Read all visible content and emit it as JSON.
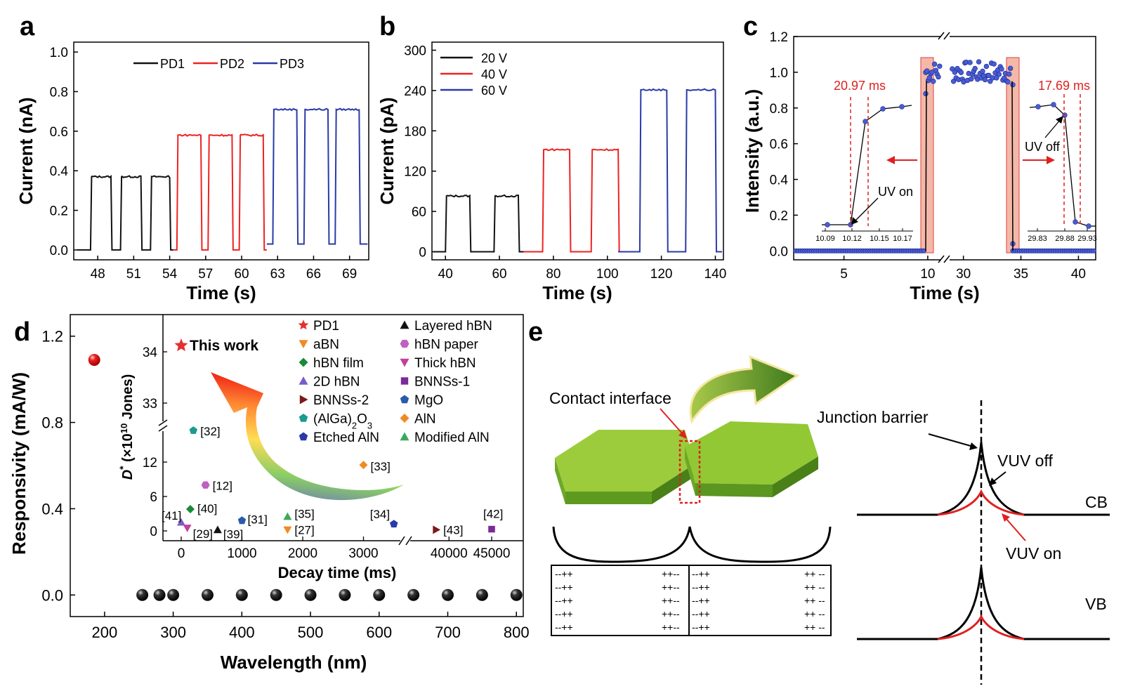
{
  "colors": {
    "black": "#111111",
    "red": "#ee2222",
    "blue": "#2a3aa8",
    "dot_blue": "#4a5bd6",
    "highlight": "#f4b8a8"
  },
  "panel_labels": [
    "a",
    "b",
    "c",
    "d",
    "e"
  ],
  "chart_data": [
    {
      "id": "a",
      "type": "line",
      "xlabel": "Time (s)",
      "ylabel": "Current (nA)",
      "xlim": [
        46,
        70.6
      ],
      "ylim": [
        -0.05,
        1.05
      ],
      "xticks": [
        48,
        51,
        54,
        57,
        60,
        63,
        66,
        69
      ],
      "yticks": [
        0.0,
        0.2,
        0.4,
        0.6,
        0.8,
        1.0
      ],
      "ytick_labels": [
        "0.0",
        "0.2",
        "0.4",
        "0.6",
        "0.8",
        "1.0"
      ],
      "legend_position": "top",
      "series": [
        {
          "name": "PD1",
          "color": "#111111",
          "x_start": 46.3,
          "x_end": 54.3,
          "low": 0.0,
          "high": 0.37,
          "pulses": [
            [
              47.4,
              49.1
            ],
            [
              49.9,
              51.6
            ],
            [
              52.4,
              54.0
            ]
          ]
        },
        {
          "name": "PD2",
          "color": "#ee2222",
          "x_start": 54.3,
          "x_end": 62.1,
          "low": 0.0,
          "high": 0.58,
          "pulses": [
            [
              54.6,
              56.6
            ],
            [
              57.2,
              59.2
            ],
            [
              59.8,
              61.8
            ]
          ]
        },
        {
          "name": "PD3",
          "color": "#2a3aa8",
          "x_start": 62.1,
          "x_end": 70.5,
          "low": 0.03,
          "high": 0.71,
          "pulses": [
            [
              62.6,
              64.6
            ],
            [
              65.2,
              67.2
            ],
            [
              67.8,
              69.8
            ]
          ]
        }
      ]
    },
    {
      "id": "b",
      "type": "line",
      "xlabel": "Time (s)",
      "ylabel": "Current (pA)",
      "xlim": [
        35,
        143
      ],
      "ylim": [
        -12,
        312
      ],
      "xticks": [
        40,
        60,
        80,
        100,
        120,
        140
      ],
      "yticks": [
        0,
        60,
        120,
        180,
        240,
        300
      ],
      "ytick_labels": [
        "0",
        "60",
        "120",
        "180",
        "240",
        "300"
      ],
      "legend_position": "top-left",
      "series": [
        {
          "name": "20 V",
          "color": "#111111",
          "x_start": 35.5,
          "x_end": 69,
          "low": 0,
          "high": 83,
          "pulses": [
            [
              40,
              49
            ],
            [
              58,
              67
            ]
          ]
        },
        {
          "name": "40 V",
          "color": "#ee2222",
          "x_start": 69,
          "x_end": 104,
          "low": 0,
          "high": 152,
          "pulses": [
            [
              76,
              86
            ],
            [
              94,
              104
            ]
          ]
        },
        {
          "name": "60 V",
          "color": "#2a3aa8",
          "x_start": 104,
          "x_end": 142.5,
          "low": 0,
          "high": 241,
          "pulses": [
            [
              112,
              122
            ],
            [
              129,
              140
            ]
          ]
        }
      ]
    },
    {
      "id": "c",
      "type": "scatter",
      "xlabel": "Time (s)",
      "ylabel": "Intensity (a.u.)",
      "ylim": [
        -0.05,
        1.2
      ],
      "yticks": [
        0.0,
        0.2,
        0.4,
        0.6,
        0.8,
        1.0,
        1.2
      ],
      "ytick_labels": [
        "0.0",
        "0.2",
        "0.4",
        "0.6",
        "0.8",
        "1.0",
        "1.2"
      ],
      "x_broken": true,
      "xticks": [
        5,
        10,
        30,
        35,
        40
      ],
      "on_level": 1.0,
      "off_level": 0.0,
      "inset_left": {
        "xticks": [
          "10.09",
          "10.12",
          "10.15",
          "10.17"
        ],
        "annotation": "20.97 ms",
        "label": "UV on"
      },
      "inset_right": {
        "xticks": [
          "29.83",
          "29.88",
          "29.93"
        ],
        "annotation": "17.69 ms",
        "label": "UV off"
      }
    },
    {
      "id": "d",
      "type": "scatter",
      "xlabel": "Wavelength (nm)",
      "ylabel": "Responsivity (mA/W)",
      "xlim": [
        150,
        810
      ],
      "ylim": [
        -0.1,
        1.3
      ],
      "xticks": [
        200,
        300,
        400,
        500,
        600,
        700,
        800
      ],
      "yticks": [
        0.0,
        0.4,
        0.8,
        1.2
      ],
      "ytick_labels": [
        "0.0",
        "0.4",
        "0.8",
        "1.2"
      ],
      "points": [
        {
          "x": 185,
          "y": 1.09,
          "color": "red"
        },
        {
          "x": 255,
          "y": 0.0
        },
        {
          "x": 280,
          "y": 0.0
        },
        {
          "x": 300,
          "y": 0.0
        },
        {
          "x": 350,
          "y": 0.0
        },
        {
          "x": 400,
          "y": 0.0
        },
        {
          "x": 450,
          "y": 0.0
        },
        {
          "x": 500,
          "y": 0.0
        },
        {
          "x": 550,
          "y": 0.0
        },
        {
          "x": 600,
          "y": 0.0
        },
        {
          "x": 650,
          "y": 0.0
        },
        {
          "x": 700,
          "y": 0.0
        },
        {
          "x": 750,
          "y": 0.0
        },
        {
          "x": 800,
          "y": 0.0
        }
      ],
      "inset": {
        "xlabel": "Decay time (ms)",
        "ylabel_main": "D",
        "ylabel_sup": "*",
        "ylabel_rest": " (×10",
        "ylabel_sup2": "10",
        "ylabel_end": " Jones)",
        "xticks": [
          "0",
          "1000",
          "2000",
          "3000",
          "40000",
          "45000"
        ],
        "yticks_low": [
          "0",
          "6",
          "12"
        ],
        "yticks_high": [
          "33",
          "34"
        ],
        "this_work": "This work",
        "legend": [
          {
            "label": "PD1",
            "shape": "star",
            "color": "#e63030"
          },
          {
            "label": "aBN",
            "shape": "tri-down",
            "color": "#f08a24"
          },
          {
            "label": "hBN film",
            "shape": "diamond",
            "color": "#1a8a3a"
          },
          {
            "label": "2D hBN",
            "shape": "tri-up",
            "color": "#7a5cc8"
          },
          {
            "label": "BNNSs-2",
            "shape": "tri-right",
            "color": "#7a1a1a"
          },
          {
            "label": "(AlGa)",
            "sub": "2",
            "label2": "O",
            "sub2": "3",
            "shape": "pentagon",
            "color": "#1a9a90"
          },
          {
            "label": "Etched AlN",
            "shape": "pentagon",
            "color": "#2a3aa8"
          },
          {
            "label": "Layered hBN",
            "shape": "tri-up",
            "color": "#111111"
          },
          {
            "label": "hBN paper",
            "shape": "hexagon",
            "color": "#c060c0"
          },
          {
            "label": "Thick hBN",
            "shape": "tri-down",
            "color": "#c040a0"
          },
          {
            "label": "BNNSs-1",
            "shape": "square",
            "color": "#7a2a9a"
          },
          {
            "label": "MgO",
            "shape": "pentagon",
            "color": "#2a5aaa"
          },
          {
            "label": "AlN",
            "shape": "diamond",
            "color": "#f08a24"
          },
          {
            "label": "Modified AlN",
            "shape": "tri-up",
            "color": "#3aaa5a"
          }
        ],
        "points": [
          {
            "ref": "[32]",
            "t": 200,
            "d": 17.5,
            "shape": "pentagon",
            "color": "#1a9a90"
          },
          {
            "ref": "[12]",
            "t": 400,
            "d": 8,
            "shape": "hexagon",
            "color": "#c060c0"
          },
          {
            "ref": "[40]",
            "t": 150,
            "d": 3.8,
            "shape": "diamond",
            "color": "#1a8a3a"
          },
          {
            "ref": "[41]",
            "t": 0,
            "d": 1.5,
            "shape": "tri-up",
            "color": "#7a5cc8"
          },
          {
            "ref": "[29]",
            "t": 100,
            "d": 0.5,
            "shape": "tri-down",
            "color": "#c040a0"
          },
          {
            "ref": "[39]",
            "t": 600,
            "d": 0.2,
            "shape": "tri-up",
            "color": "#111111"
          },
          {
            "ref": "[31]",
            "t": 1000,
            "d": 1.8,
            "shape": "pentagon",
            "color": "#2a5aaa"
          },
          {
            "ref": "[35]",
            "t": 1750,
            "d": 2.5,
            "shape": "tri-up",
            "color": "#3aaa5a"
          },
          {
            "ref": "[27]",
            "t": 1750,
            "d": 0.2,
            "shape": "tri-down",
            "color": "#f08a24"
          },
          {
            "ref": "[33]",
            "t": 3000,
            "d": 11.5,
            "shape": "diamond",
            "color": "#f08a24"
          },
          {
            "ref": "[34]",
            "t": 3500,
            "d": 1.2,
            "shape": "pentagon",
            "color": "#2a3aa8"
          },
          {
            "ref": "[43]",
            "t": 38500,
            "d": 0.2,
            "shape": "tri-right",
            "color": "#7a1a1a"
          },
          {
            "ref": "[42]",
            "t": 45000,
            "d": 0.3,
            "shape": "square",
            "color": "#7a2a9a"
          }
        ]
      }
    }
  ],
  "panel_e": {
    "contact_interface": "Contact interface",
    "junction_barrier": "Junction barrier",
    "vuv_off": "VUV off",
    "vuv_on": "VUV on",
    "cb": "CB",
    "vb": "VB",
    "charge_rows": [
      [
        "--++",
        "++--",
        "--++",
        "++ --"
      ],
      [
        "--++",
        "++--",
        "--++",
        "++ --"
      ],
      [
        "--++",
        "++--",
        "--++",
        "++ --"
      ],
      [
        "--++",
        "++--",
        "--++",
        "++ --"
      ],
      [
        "--++",
        "++--",
        "--++",
        "++ --"
      ]
    ]
  }
}
